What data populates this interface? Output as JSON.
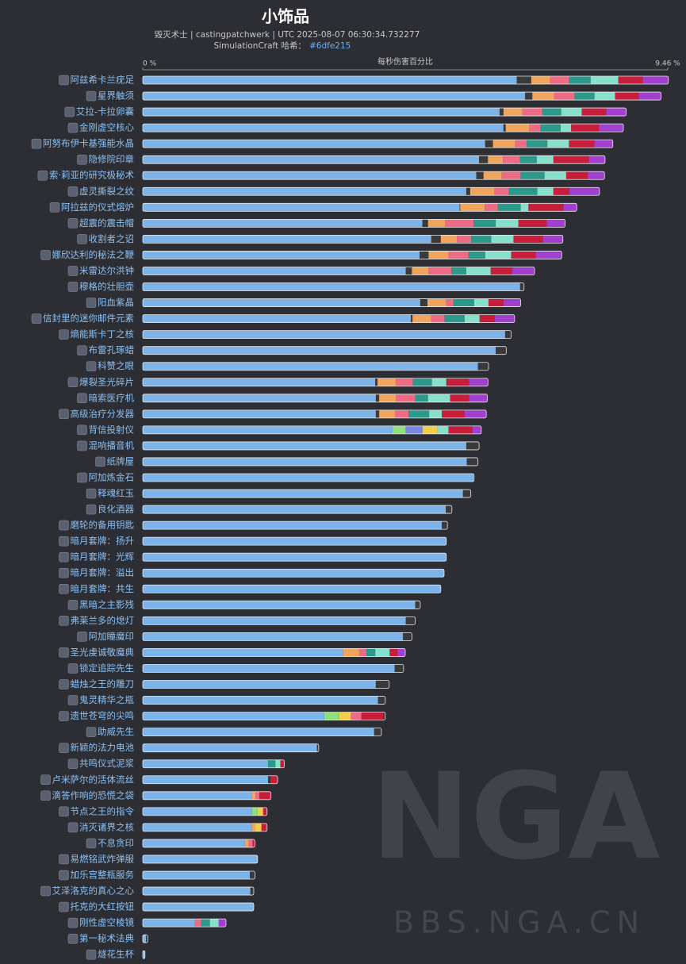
{
  "chart_data": {
    "type": "stacked-bar-horizontal",
    "title": "小饰品",
    "subtitle": "毁灭术士 | castingpatchwerk | UTC 2025-08-07 06:30:34.732277",
    "hash_label": "SimulationCraft 哈希：",
    "hash": "#6dfe215",
    "axis_label": "每秒伤害百分比",
    "xlim": [
      0,
      9.46
    ],
    "xticks": [
      {
        "value": 0,
        "label": "0 %"
      },
      {
        "value": 9.46,
        "label": "9.46 %"
      }
    ],
    "categories": [
      "阿兹希卡兰疣足",
      "星界触须",
      "艾拉-卡拉卵囊",
      "金刚虚空核心",
      "阿努布伊卡基强能水晶",
      "隐修院印章",
      "索·莉亚的研究极秘术",
      "虚灵撕裂之纹",
      "阿拉兹的仪式熔炉",
      "超震的震击帽",
      "收割者之诏",
      "娜欣达利的秘法之鞭",
      "米雷达尔洪钟",
      "穆格的壮胆壶",
      "阳血紫晶",
      "信封里的迷你邮件元素",
      "熵能斯卡丁之核",
      "布雷孔琢蜡",
      "科赞之眼",
      "爆裂圣光碎片",
      "暗索医疗机",
      "高级治疗分发器",
      "背信投射仪",
      "混响播音机",
      "纸牌屋",
      "阿加炼金石",
      "释魂红玉",
      "良化酒器",
      "磨轮的备用钥匙",
      "暗月套牌：扬升",
      "暗月套牌：光辉",
      "暗月套牌：溢出",
      "暗月套牌：共生",
      "黑暗之主影残",
      "弗莱兰多的熄灯",
      "阿加瞳魔印",
      "圣光虔诚敬魔典",
      "锁定追踪先生",
      "蜡烛之王的雕刀",
      "鬼灵精华之瓶",
      "遗世苍穹的尖鸣",
      "助威先生",
      "新颖的法力电池",
      "共鸣仪式泥浆",
      "卢米萨尔的活体流丝",
      "滴答作响的恐慌之袋",
      "节点之王的指令",
      "消灭诸界之核",
      "不息贪印",
      "易燃铭武炸弹服",
      "加乐宫整瓶服务",
      "艾泽洛克的真心之心",
      "托克的大红按钮",
      "刚性虚空棱镜",
      "第一秘术法典",
      "燧花生杯"
    ],
    "segments": [
      [
        6.74,
        0.26,
        0.34,
        0.34,
        0.39,
        0.5,
        0.44,
        0.46
      ],
      [
        6.89,
        0.13,
        0.39,
        0.37,
        0.36,
        0.37,
        0.43,
        0.4
      ],
      [
        6.43,
        0.07,
        0.34,
        0.36,
        0.34,
        0.37,
        0.44,
        0.36
      ],
      [
        6.5,
        0.04,
        0.43,
        0.2,
        0.36,
        0.19,
        0.5,
        0.44
      ],
      [
        6.17,
        0.14,
        0.4,
        0.21,
        0.37,
        0.39,
        0.46,
        0.33
      ],
      [
        6.06,
        0.16,
        0.27,
        0.31,
        0.3,
        0.3,
        0.64,
        0.29
      ],
      [
        6.01,
        0.13,
        0.33,
        0.34,
        0.43,
        0.39,
        0.39,
        0.3
      ],
      [
        5.83,
        0.07,
        0.44,
        0.26,
        0.51,
        0.29,
        0.29,
        0.54
      ],
      [
        5.71,
        0.01,
        0.44,
        0.24,
        0.41,
        0.14,
        0.63,
        0.24
      ],
      [
        5.04,
        0.1,
        0.31,
        0.51,
        0.4,
        0.41,
        0.51,
        0.33
      ],
      [
        5.2,
        0.17,
        0.29,
        0.26,
        0.36,
        0.4,
        0.53,
        0.36
      ],
      [
        4.99,
        0.16,
        0.36,
        0.36,
        0.3,
        0.47,
        0.44,
        0.47
      ],
      [
        4.74,
        0.11,
        0.3,
        0.41,
        0.27,
        0.44,
        0.39,
        0.4
      ],
      [
        6.8,
        0.07
      ],
      [
        5.0,
        0.13,
        0.34,
        0.13,
        0.37,
        0.26,
        0.27,
        0.31
      ],
      [
        4.83,
        0.03,
        0.34,
        0.24,
        0.36,
        0.27,
        0.27,
        0.36
      ],
      [
        6.53,
        0.11
      ],
      [
        6.36,
        0.19
      ],
      [
        6.04,
        0.19
      ],
      [
        4.19,
        0.04,
        0.33,
        0.31,
        0.34,
        0.26,
        0.41,
        0.34
      ],
      [
        4.2,
        0.06,
        0.31,
        0.34,
        0.23,
        0.4,
        0.34,
        0.33
      ],
      [
        4.2,
        0.06,
        0.29,
        0.24,
        0.37,
        0.23,
        0.41,
        0.39
      ],
      [
        4.5,
        0.24,
        0.3,
        0.27,
        0.2,
        0.43,
        0.16
      ],
      [
        5.83,
        0.23
      ],
      [
        5.84,
        0.2
      ],
      [
        5.96,
        0.01
      ],
      [
        5.77,
        0.14
      ],
      [
        5.46,
        0.11
      ],
      [
        5.39,
        0.1
      ],
      [
        5.47
      ],
      [
        5.47
      ],
      [
        5.43
      ],
      [
        5.37
      ],
      [
        4.91,
        0.09
      ],
      [
        4.74,
        0.17
      ],
      [
        4.69,
        0.16
      ],
      [
        3.61,
        0.29,
        0.13,
        0.16,
        0.26,
        0.14,
        0.14
      ],
      [
        4.54,
        0.16
      ],
      [
        4.2,
        0.24
      ],
      [
        4.24,
        0.13
      ],
      [
        3.27,
        0.27,
        0.21,
        0.19,
        0.4,
        0.03
      ],
      [
        4.17,
        0.13
      ],
      [
        3.14,
        0.03
      ],
      [
        2.26,
        0.13,
        0.09,
        0.07
      ],
      [
        2.26,
        0.04,
        0.13
      ],
      [
        1.97,
        0.06,
        0.07,
        0.21
      ],
      [
        1.97,
        0.1,
        0.1,
        0.07
      ],
      [
        1.97,
        0.06,
        0.11,
        0.1
      ],
      [
        1.84,
        0.07,
        0.07,
        0.04
      ],
      [
        2.07
      ],
      [
        1.93,
        0.09
      ],
      [
        1.94,
        0.06
      ],
      [
        2.0
      ],
      [
        0.94,
        0.11,
        0.16,
        0.16,
        0.13
      ],
      [
        0.06,
        0.03
      ],
      [
        0.04
      ]
    ],
    "colors": [
      [
        "#7cb4ea",
        "#3a3a3a",
        "#f0a45c",
        "#ee6b85",
        "#2b9a8c",
        "#86e0cc",
        "#c81e3c",
        "#a23fd0"
      ],
      [
        "#7cb4ea",
        "#3a3a3a",
        "#f0a45c",
        "#ee6b85",
        "#2b9a8c",
        "#86e0cc",
        "#c81e3c",
        "#a23fd0"
      ],
      [
        "#7cb4ea",
        "#3a3a3a",
        "#f0a45c",
        "#ee6b85",
        "#2b9a8c",
        "#86e0cc",
        "#c81e3c",
        "#a23fd0"
      ],
      [
        "#7cb4ea",
        "#3a3a3a",
        "#f0a45c",
        "#ee6b85",
        "#2b9a8c",
        "#86e0cc",
        "#c81e3c",
        "#a23fd0"
      ],
      [
        "#7cb4ea",
        "#3a3a3a",
        "#f0a45c",
        "#ee6b85",
        "#2b9a8c",
        "#86e0cc",
        "#c81e3c",
        "#a23fd0"
      ],
      [
        "#7cb4ea",
        "#3a3a3a",
        "#f0a45c",
        "#ee6b85",
        "#2b9a8c",
        "#86e0cc",
        "#c81e3c",
        "#a23fd0"
      ],
      [
        "#7cb4ea",
        "#3a3a3a",
        "#f0a45c",
        "#ee6b85",
        "#2b9a8c",
        "#86e0cc",
        "#c81e3c",
        "#a23fd0"
      ],
      [
        "#7cb4ea",
        "#3a3a3a",
        "#f0a45c",
        "#ee6b85",
        "#2b9a8c",
        "#86e0cc",
        "#c81e3c",
        "#a23fd0"
      ],
      [
        "#7cb4ea",
        "#3a3a3a",
        "#f0a45c",
        "#ee6b85",
        "#2b9a8c",
        "#86e0cc",
        "#c81e3c",
        "#a23fd0"
      ],
      [
        "#7cb4ea",
        "#3a3a3a",
        "#f0a45c",
        "#ee6b85",
        "#2b9a8c",
        "#86e0cc",
        "#c81e3c",
        "#a23fd0"
      ],
      [
        "#7cb4ea",
        "#3a3a3a",
        "#f0a45c",
        "#ee6b85",
        "#2b9a8c",
        "#86e0cc",
        "#c81e3c",
        "#a23fd0"
      ],
      [
        "#7cb4ea",
        "#3a3a3a",
        "#f0a45c",
        "#ee6b85",
        "#2b9a8c",
        "#86e0cc",
        "#c81e3c",
        "#a23fd0"
      ],
      [
        "#7cb4ea",
        "#3a3a3a",
        "#f0a45c",
        "#ee6b85",
        "#2b9a8c",
        "#86e0cc",
        "#c81e3c",
        "#a23fd0"
      ],
      [
        "#7cb4ea",
        "#3a3a3a"
      ],
      [
        "#7cb4ea",
        "#3a3a3a",
        "#f0a45c",
        "#ee6b85",
        "#2b9a8c",
        "#86e0cc",
        "#c81e3c",
        "#a23fd0"
      ],
      [
        "#7cb4ea",
        "#3a3a3a",
        "#f0a45c",
        "#ee6b85",
        "#2b9a8c",
        "#86e0cc",
        "#c81e3c",
        "#a23fd0"
      ],
      [
        "#7cb4ea",
        "#3a3a3a"
      ],
      [
        "#7cb4ea",
        "#3a3a3a"
      ],
      [
        "#7cb4ea",
        "#3a3a3a"
      ],
      [
        "#7cb4ea",
        "#3a3a3a",
        "#f0a45c",
        "#ee6b85",
        "#2b9a8c",
        "#86e0cc",
        "#c81e3c",
        "#a23fd0"
      ],
      [
        "#7cb4ea",
        "#3a3a3a",
        "#f0a45c",
        "#ee6b85",
        "#2b9a8c",
        "#86e0cc",
        "#c81e3c",
        "#a23fd0"
      ],
      [
        "#7cb4ea",
        "#3a3a3a",
        "#f0a45c",
        "#ee6b85",
        "#2b9a8c",
        "#86e0cc",
        "#c81e3c",
        "#a23fd0"
      ],
      [
        "#7cb4ea",
        "#8fe07a",
        "#7a86e0",
        "#f0d04a",
        "#86e0cc",
        "#c81e3c",
        "#a23fd0"
      ],
      [
        "#7cb4ea",
        "#3a3a3a"
      ],
      [
        "#7cb4ea",
        "#3a3a3a"
      ],
      [
        "#7cb4ea",
        "#3a3a3a"
      ],
      [
        "#7cb4ea",
        "#3a3a3a"
      ],
      [
        "#7cb4ea",
        "#3a3a3a"
      ],
      [
        "#7cb4ea",
        "#3a3a3a"
      ],
      [
        "#7cb4ea"
      ],
      [
        "#7cb4ea"
      ],
      [
        "#7cb4ea"
      ],
      [
        "#7cb4ea"
      ],
      [
        "#7cb4ea",
        "#3a3a3a"
      ],
      [
        "#7cb4ea",
        "#3a3a3a"
      ],
      [
        "#7cb4ea",
        "#3a3a3a"
      ],
      [
        "#7cb4ea",
        "#f0a45c",
        "#ee6b85",
        "#2b9a8c",
        "#86e0cc",
        "#c81e3c",
        "#a23fd0"
      ],
      [
        "#7cb4ea",
        "#3a3a3a"
      ],
      [
        "#7cb4ea",
        "#3a3a3a"
      ],
      [
        "#7cb4ea",
        "#3a3a3a"
      ],
      [
        "#7cb4ea",
        "#8fe07a",
        "#f0d04a",
        "#ee6b85",
        "#c81e3c",
        "#3a3a3a"
      ],
      [
        "#7cb4ea",
        "#3a3a3a"
      ],
      [
        "#7cb4ea",
        "#3a3a3a"
      ],
      [
        "#7cb4ea",
        "#2b9a8c",
        "#86e0cc",
        "#c81e3c"
      ],
      [
        "#7cb4ea",
        "#3a3a3a",
        "#c81e3c"
      ],
      [
        "#7cb4ea",
        "#f0a45c",
        "#ee6b85",
        "#c81e3c"
      ],
      [
        "#7cb4ea",
        "#8fe07a",
        "#f0d04a",
        "#c81e3c"
      ],
      [
        "#7cb4ea",
        "#f0a45c",
        "#f0d04a",
        "#c81e3c"
      ],
      [
        "#7cb4ea",
        "#f0a45c",
        "#ee6b85",
        "#c81e3c"
      ],
      [
        "#7cb4ea"
      ],
      [
        "#7cb4ea",
        "#3a3a3a"
      ],
      [
        "#7cb4ea",
        "#3a3a3a"
      ],
      [
        "#7cb4ea"
      ],
      [
        "#7cb4ea",
        "#ee6b85",
        "#2b9a8c",
        "#86e0cc",
        "#a23fd0"
      ],
      [
        "#7cb4ea",
        "#3a3a3a"
      ],
      [
        "#7cb4ea"
      ]
    ],
    "watermark": {
      "logo": "NGA",
      "url": "BBS.NGA.CN"
    }
  }
}
